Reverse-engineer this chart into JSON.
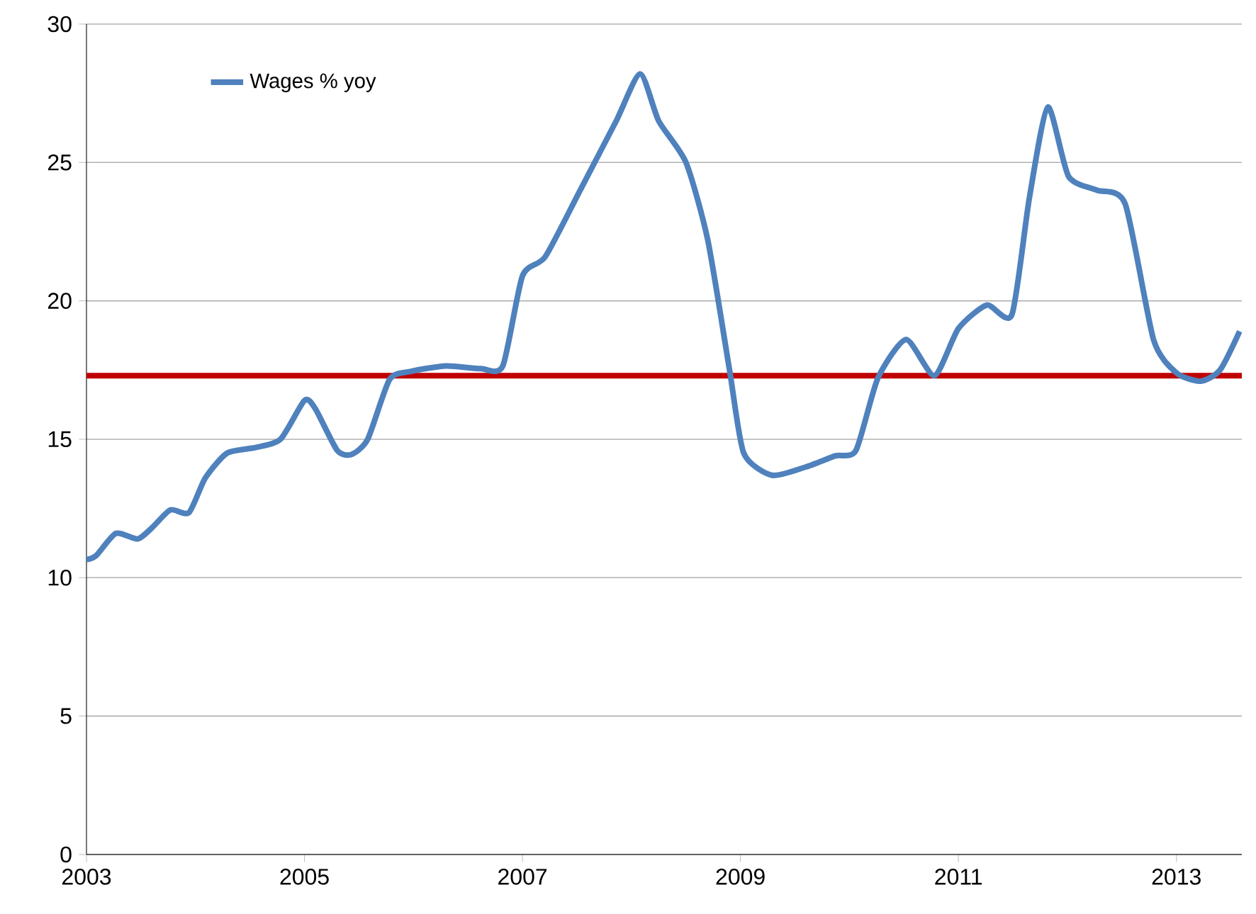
{
  "chart_data": {
    "type": "line",
    "x": [
      2003.0,
      2003.09,
      2003.27,
      2003.47,
      2003.6,
      2003.77,
      2003.94,
      2004.09,
      2004.29,
      2004.55,
      2004.78,
      2005.0,
      2005.1,
      2005.3,
      2005.43,
      2005.58,
      2005.78,
      2005.97,
      2006.3,
      2006.62,
      2006.82,
      2007.0,
      2007.21,
      2007.53,
      2007.86,
      2008.08,
      2008.25,
      2008.5,
      2008.7,
      2008.9,
      2009.03,
      2009.29,
      2009.6,
      2009.87,
      2010.06,
      2010.26,
      2010.52,
      2010.78,
      2011.0,
      2011.26,
      2011.49,
      2011.65,
      2011.82,
      2012.01,
      2012.27,
      2012.53,
      2012.79,
      2013.0,
      2013.22,
      2013.4,
      2013.58
    ],
    "series": [
      {
        "name": "Wages % yoy",
        "color": "#4f81bd",
        "values": [
          10.65,
          10.8,
          11.6,
          11.4,
          11.8,
          12.45,
          12.35,
          13.6,
          14.5,
          14.7,
          15.0,
          16.4,
          16.1,
          14.6,
          14.45,
          15.0,
          17.15,
          17.45,
          17.65,
          17.55,
          17.65,
          20.9,
          21.6,
          24.0,
          26.5,
          28.2,
          26.5,
          25.0,
          22.2,
          17.5,
          14.5,
          13.7,
          14.0,
          14.4,
          14.6,
          17.2,
          18.6,
          17.3,
          19.0,
          19.85,
          19.5,
          23.7,
          27.0,
          24.5,
          24.0,
          23.5,
          18.6,
          17.4,
          17.1,
          17.5,
          18.9
        ]
      }
    ],
    "xlim": [
      2003,
      2013.6
    ],
    "xticks": [
      2003,
      2005,
      2007,
      2009,
      2011,
      2013
    ],
    "ylim": [
      0,
      30
    ],
    "yticks": [
      0,
      5,
      10,
      15,
      20,
      25,
      30
    ],
    "grid": "y",
    "legend": "top left",
    "marker": "none",
    "line_style": "solid",
    "ref_lines": [
      {
        "axis": "y",
        "value": 17.3,
        "color": "#c00000"
      }
    ]
  }
}
